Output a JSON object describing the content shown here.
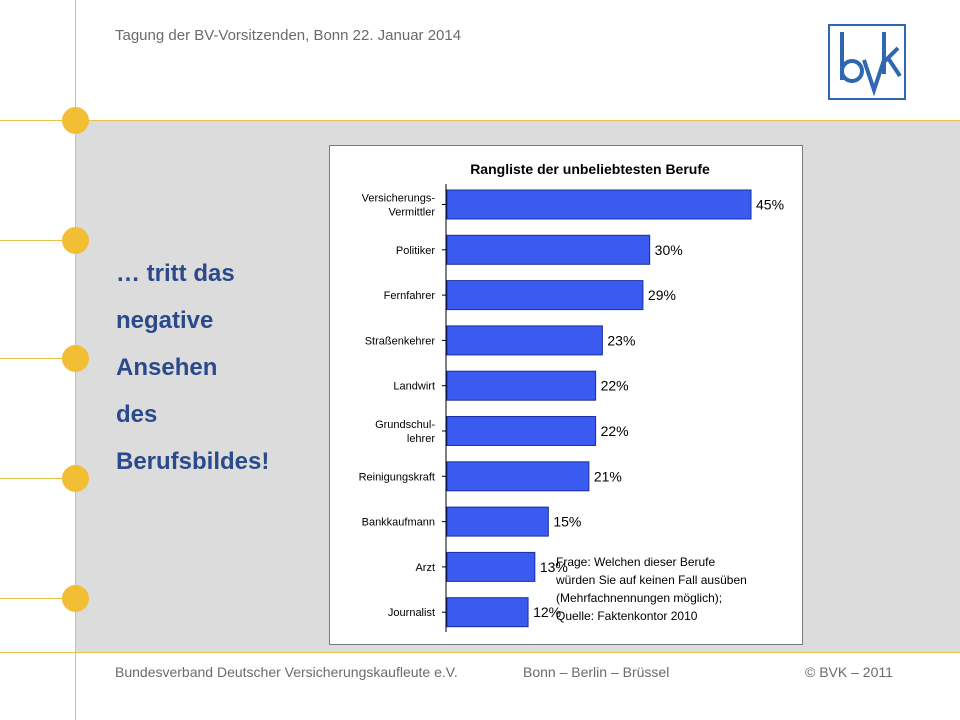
{
  "header": {
    "text": "Tagung der BV-Vorsitzenden, Bonn 22. Januar 2014"
  },
  "logo": {
    "icon": "bvk-logo-icon",
    "color": "#2f67b1"
  },
  "slogan": {
    "lines": [
      "… tritt das",
      "negative",
      "Ansehen",
      "des",
      "Berufsbildes!"
    ]
  },
  "footer": {
    "org": "Bundesverband Deutscher Versicherungskaufleute e.V.",
    "cities": "Bonn – Berlin – Brüssel",
    "copyright": "© BVK – 2011"
  },
  "colors": {
    "bar_fill": "#3b5bf0",
    "bar_stroke": "#1a2fa0",
    "accent": "#f2be34",
    "slogan": "#2b4a8c"
  },
  "chart_data": {
    "type": "bar",
    "orientation": "horizontal",
    "title": "Rangliste der unbeliebtesten Berufe",
    "categories": [
      [
        "Versicherungs-",
        "Vermittler"
      ],
      [
        "Politiker"
      ],
      [
        "Fernfahrer"
      ],
      [
        "Straßenkehrer"
      ],
      [
        "Landwirt"
      ],
      [
        "Grundschul-",
        "lehrer"
      ],
      [
        "Reinigungskraft"
      ],
      [
        "Bankkaufmann"
      ],
      [
        "Arzt"
      ],
      [
        "Journalist"
      ]
    ],
    "values": [
      45,
      30,
      29,
      23,
      22,
      22,
      21,
      15,
      13,
      12
    ],
    "value_labels": [
      "45%",
      "30%",
      "29%",
      "23%",
      "22%",
      "22%",
      "21%",
      "15%",
      "13%",
      "12%"
    ],
    "xlim": [
      0,
      45
    ],
    "grid": false,
    "legend": "none",
    "note": [
      "Frage: Welchen dieser Berufe",
      "würden Sie auf keinen Fall ausüben",
      "(Mehrfachnennungen möglich);",
      "Quelle: Faktenkontor 2010"
    ]
  }
}
